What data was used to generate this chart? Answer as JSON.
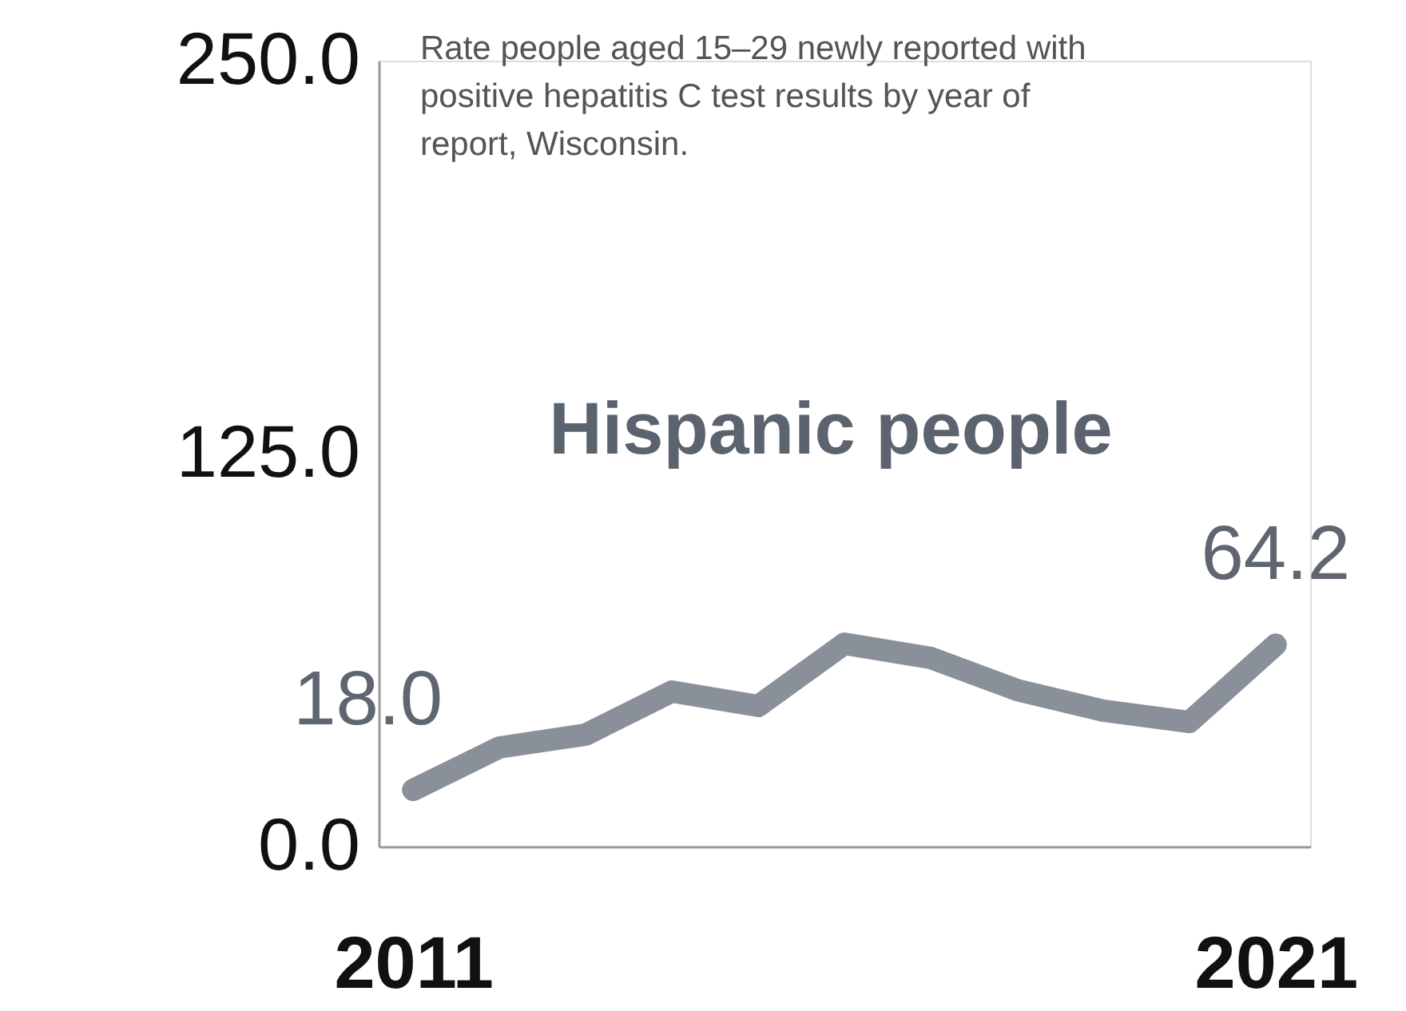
{
  "chart_data": {
    "type": "line",
    "title": "Rate people aged 15–29 newly reported with positive hepatitis C test results by year of report, Wisconsin.",
    "x": [
      2011,
      2012,
      2013,
      2014,
      2015,
      2016,
      2017,
      2018,
      2019,
      2020,
      2021
    ],
    "series": [
      {
        "name": "Hispanic people",
        "color": "#8a9099",
        "values": [
          18.0,
          31.5,
          35.6,
          49.3,
          44.7,
          64.5,
          60.0,
          49.8,
          43.2,
          39.6,
          64.2
        ],
        "value_labels": [
          "18.0",
          null,
          null,
          null,
          null,
          null,
          null,
          null,
          null,
          null,
          "64.2"
        ]
      }
    ],
    "xlim": [
      2010.6,
      2021.4
    ],
    "xticks": [
      2011,
      2021
    ],
    "ylim": [
      0,
      250
    ],
    "yticks": [
      {
        "value": 0,
        "label": "0.0"
      },
      {
        "value": 125,
        "label": "125.0"
      },
      {
        "value": 250,
        "label": "250.0"
      }
    ],
    "grid": false,
    "line_style": "solid"
  }
}
